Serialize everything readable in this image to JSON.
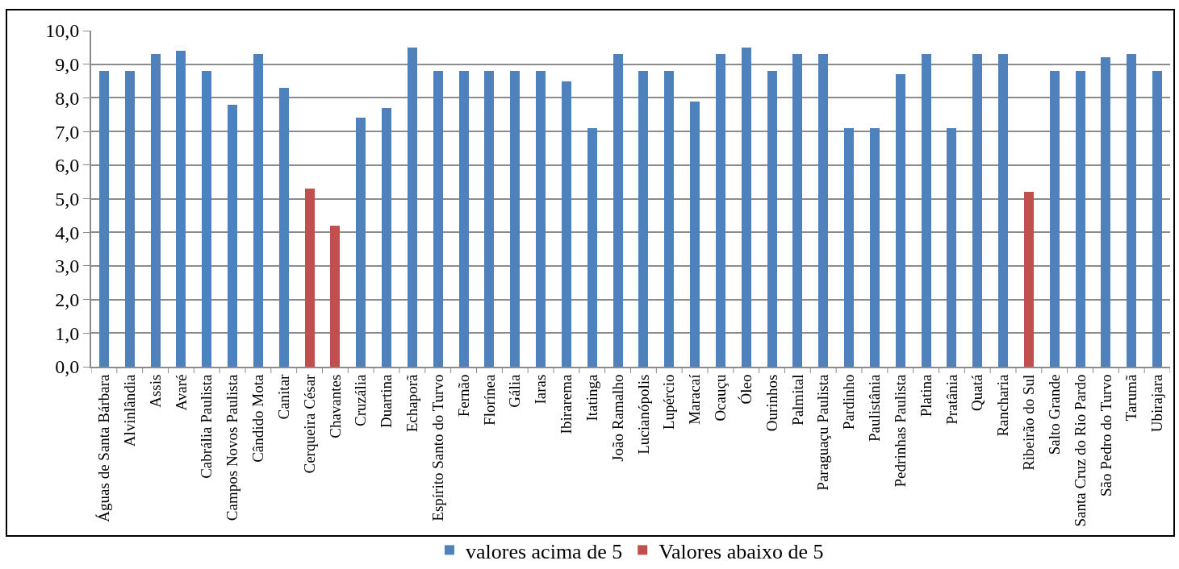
{
  "chart_data": {
    "type": "bar",
    "categories": [
      "Águas de Santa Bárbara",
      "Alvinlândia",
      "Assis",
      "Avaré",
      "Cabrália Paulista",
      "Campos Novos Paulista",
      "Cândido Mota",
      "Canitar",
      "Cerqueira César",
      "Chavantes",
      "Cruzália",
      "Duartina",
      "Echaporã",
      "Espírito Santo do Turvo",
      "Fernão",
      "Florínea",
      "Gália",
      "Iaras",
      "Ibirarema",
      "Itatinga",
      "João Ramalho",
      "Lucianópolis",
      "Lupércio",
      "Maracaí",
      "Ocauçu",
      "Óleo",
      "Ourinhos",
      "Palmital",
      "Paraguaçu Paulista",
      "Pardinho",
      "Paulistânia",
      "Pedrinhas Paulista",
      "Platina",
      "Pratânia",
      "Quatá",
      "Rancharia",
      "Ribeirão do Sul",
      "Salto Grande",
      "Santa Cruz do Rio Pardo",
      "São Pedro do Turvo",
      "Tarumã",
      "Ubirajara"
    ],
    "series": [
      {
        "name": "valores acima de 5",
        "color": "#4f81bd",
        "values": [
          8.8,
          8.8,
          9.3,
          9.4,
          8.8,
          7.8,
          9.3,
          8.3,
          null,
          null,
          7.4,
          7.7,
          9.5,
          8.8,
          8.8,
          8.8,
          8.8,
          8.8,
          8.5,
          7.1,
          9.3,
          8.8,
          8.8,
          7.9,
          9.3,
          9.5,
          8.8,
          9.3,
          9.3,
          7.1,
          7.1,
          8.7,
          9.3,
          7.1,
          9.3,
          9.3,
          null,
          8.8,
          8.8,
          9.2,
          9.3,
          8.8
        ]
      },
      {
        "name": "Valores abaixo de 5",
        "color": "#c0504d",
        "values": [
          null,
          null,
          null,
          null,
          null,
          null,
          null,
          null,
          5.3,
          4.2,
          null,
          null,
          null,
          null,
          null,
          null,
          null,
          null,
          null,
          null,
          null,
          null,
          null,
          null,
          null,
          null,
          null,
          null,
          null,
          null,
          null,
          null,
          null,
          null,
          null,
          null,
          5.2,
          null,
          null,
          null,
          null,
          null
        ]
      }
    ],
    "stacked": true,
    "ylim": [
      0,
      10
    ],
    "yticks": [
      {
        "value": 0,
        "label": "0,0"
      },
      {
        "value": 1,
        "label": "1,0"
      },
      {
        "value": 2,
        "label": "2,0"
      },
      {
        "value": 3,
        "label": "3,0"
      },
      {
        "value": 4,
        "label": "4,0"
      },
      {
        "value": 5,
        "label": "5,0"
      },
      {
        "value": 6,
        "label": "6,0"
      },
      {
        "value": 7,
        "label": "7,0"
      },
      {
        "value": 8,
        "label": "8,0"
      },
      {
        "value": 9,
        "label": "9,0"
      },
      {
        "value": 10,
        "label": "10,0"
      }
    ],
    "grid": "y",
    "legend": "bottom"
  }
}
